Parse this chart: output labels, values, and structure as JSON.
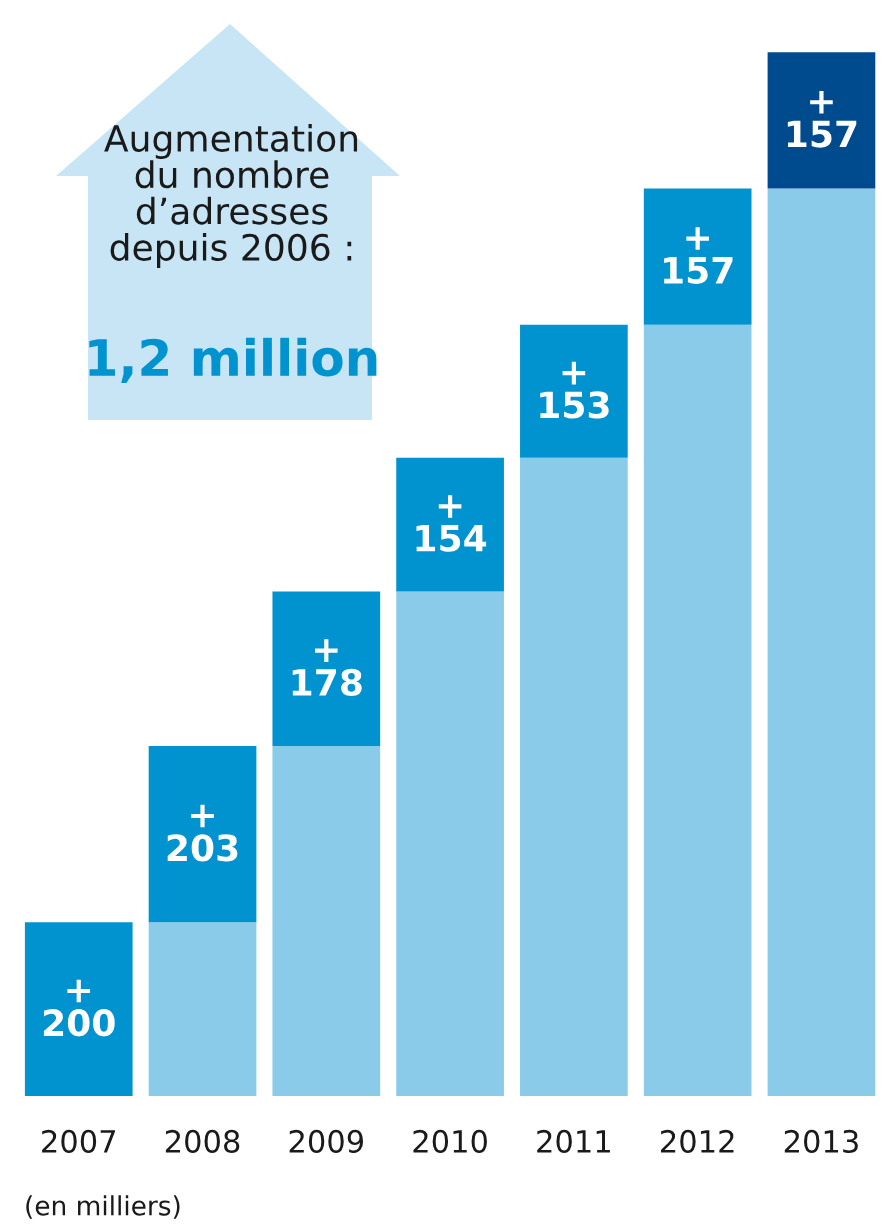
{
  "chart_data": {
    "type": "bar",
    "stacked": true,
    "categories": [
      "2007",
      "2008",
      "2009",
      "2010",
      "2011",
      "2012",
      "2013"
    ],
    "series": [
      {
        "color": "#89cbe9",
        "values": [
          0,
          200,
          403,
          581,
          735,
          888,
          1045
        ]
      },
      {
        "colors": [
          "#0093d0",
          "#0093d0",
          "#0093d0",
          "#0093d0",
          "#0093d0",
          "#0093d0",
          "#004b8d"
        ],
        "values": [
          200,
          203,
          178,
          154,
          153,
          157,
          157
        ],
        "value_labels": [
          "+\n200",
          "+\n203",
          "+\n178",
          "+\n154",
          "+\n153",
          "+\n157",
          "+\n157"
        ]
      }
    ],
    "annotations": [
      "Augmentation\ndu nombre\nd’adresses\ndepuis 2006 :",
      "1,2 million",
      "(en milliers)"
    ],
    "grid": false,
    "legend": false
  }
}
